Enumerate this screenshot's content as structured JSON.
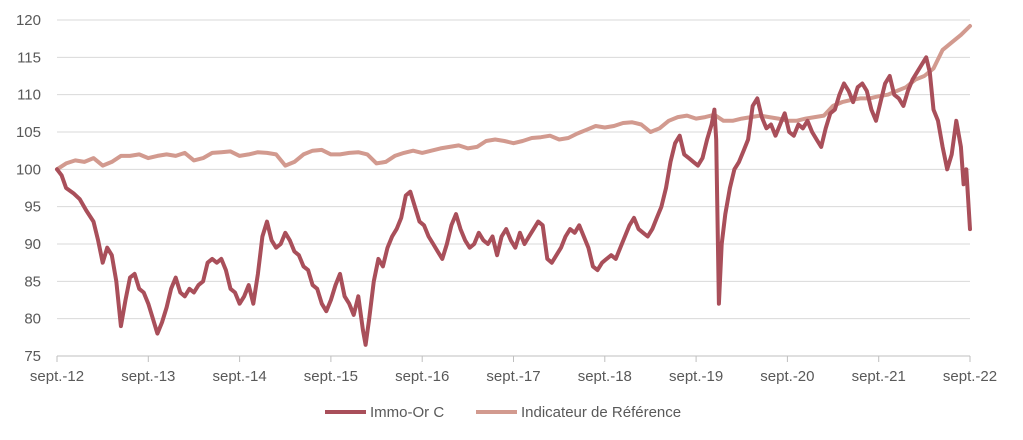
{
  "chart_data": {
    "type": "line",
    "title": "",
    "xlabel": "",
    "ylabel": "",
    "ylim": [
      75,
      120
    ],
    "yticks": [
      75,
      80,
      85,
      90,
      95,
      100,
      105,
      110,
      115,
      120
    ],
    "xticks": [
      "sept.-12",
      "sept.-13",
      "sept.-14",
      "sept.-15",
      "sept.-16",
      "sept.-17",
      "sept.-18",
      "sept.-19",
      "sept.-20",
      "sept.-21",
      "sept.-22"
    ],
    "grid": "horizontal",
    "legend_position": "bottom",
    "series": [
      {
        "name": "Immo-Or C",
        "color": "#a94f5a",
        "points": [
          [
            0.0,
            100.0
          ],
          [
            0.05,
            99.2
          ],
          [
            0.1,
            97.5
          ],
          [
            0.18,
            96.8
          ],
          [
            0.25,
            96.0
          ],
          [
            0.32,
            94.5
          ],
          [
            0.4,
            93.0
          ],
          [
            0.45,
            90.5
          ],
          [
            0.5,
            87.5
          ],
          [
            0.55,
            89.5
          ],
          [
            0.6,
            88.5
          ],
          [
            0.65,
            85.0
          ],
          [
            0.7,
            79.0
          ],
          [
            0.75,
            82.5
          ],
          [
            0.8,
            85.5
          ],
          [
            0.85,
            86.0
          ],
          [
            0.9,
            84.0
          ],
          [
            0.95,
            83.5
          ],
          [
            1.0,
            82.0
          ],
          [
            1.05,
            80.0
          ],
          [
            1.1,
            78.0
          ],
          [
            1.15,
            79.5
          ],
          [
            1.2,
            81.5
          ],
          [
            1.25,
            84.0
          ],
          [
            1.3,
            85.5
          ],
          [
            1.35,
            83.5
          ],
          [
            1.4,
            83.0
          ],
          [
            1.45,
            84.0
          ],
          [
            1.5,
            83.5
          ],
          [
            1.55,
            84.5
          ],
          [
            1.6,
            85.0
          ],
          [
            1.65,
            87.5
          ],
          [
            1.7,
            88.0
          ],
          [
            1.75,
            87.5
          ],
          [
            1.8,
            88.0
          ],
          [
            1.85,
            86.5
          ],
          [
            1.9,
            84.0
          ],
          [
            1.95,
            83.5
          ],
          [
            2.0,
            82.0
          ],
          [
            2.05,
            83.0
          ],
          [
            2.1,
            84.5
          ],
          [
            2.15,
            82.0
          ],
          [
            2.2,
            86.0
          ],
          [
            2.25,
            91.0
          ],
          [
            2.3,
            93.0
          ],
          [
            2.35,
            90.5
          ],
          [
            2.4,
            89.5
          ],
          [
            2.45,
            90.0
          ],
          [
            2.5,
            91.5
          ],
          [
            2.55,
            90.5
          ],
          [
            2.6,
            89.0
          ],
          [
            2.65,
            88.5
          ],
          [
            2.7,
            87.0
          ],
          [
            2.75,
            86.5
          ],
          [
            2.8,
            84.5
          ],
          [
            2.85,
            84.0
          ],
          [
            2.9,
            82.0
          ],
          [
            2.95,
            81.0
          ],
          [
            3.0,
            82.5
          ],
          [
            3.05,
            84.5
          ],
          [
            3.1,
            86.0
          ],
          [
            3.15,
            83.0
          ],
          [
            3.2,
            82.0
          ],
          [
            3.25,
            80.5
          ],
          [
            3.3,
            83.0
          ],
          [
            3.35,
            78.5
          ],
          [
            3.38,
            76.5
          ],
          [
            3.42,
            80.0
          ],
          [
            3.47,
            85.0
          ],
          [
            3.52,
            88.0
          ],
          [
            3.57,
            87.0
          ],
          [
            3.62,
            89.5
          ],
          [
            3.67,
            91.0
          ],
          [
            3.72,
            92.0
          ],
          [
            3.77,
            93.5
          ],
          [
            3.82,
            96.5
          ],
          [
            3.87,
            97.0
          ],
          [
            3.92,
            95.0
          ],
          [
            3.97,
            93.0
          ],
          [
            4.02,
            92.5
          ],
          [
            4.07,
            91.0
          ],
          [
            4.12,
            90.0
          ],
          [
            4.17,
            89.0
          ],
          [
            4.22,
            88.0
          ],
          [
            4.27,
            90.0
          ],
          [
            4.32,
            92.5
          ],
          [
            4.37,
            94.0
          ],
          [
            4.42,
            92.0
          ],
          [
            4.47,
            90.5
          ],
          [
            4.52,
            89.5
          ],
          [
            4.57,
            90.0
          ],
          [
            4.62,
            91.5
          ],
          [
            4.67,
            90.5
          ],
          [
            4.72,
            90.0
          ],
          [
            4.77,
            91.0
          ],
          [
            4.82,
            88.5
          ],
          [
            4.87,
            91.0
          ],
          [
            4.92,
            92.0
          ],
          [
            4.97,
            90.5
          ],
          [
            5.02,
            89.5
          ],
          [
            5.07,
            91.5
          ],
          [
            5.12,
            90.0
          ],
          [
            5.17,
            91.0
          ],
          [
            5.22,
            92.0
          ],
          [
            5.27,
            93.0
          ],
          [
            5.32,
            92.5
          ],
          [
            5.37,
            88.0
          ],
          [
            5.42,
            87.5
          ],
          [
            5.47,
            88.5
          ],
          [
            5.52,
            89.5
          ],
          [
            5.57,
            91.0
          ],
          [
            5.62,
            92.0
          ],
          [
            5.67,
            91.5
          ],
          [
            5.72,
            92.5
          ],
          [
            5.77,
            91.0
          ],
          [
            5.82,
            89.5
          ],
          [
            5.87,
            87.0
          ],
          [
            5.92,
            86.5
          ],
          [
            5.97,
            87.5
          ],
          [
            6.02,
            88.0
          ],
          [
            6.07,
            88.5
          ],
          [
            6.12,
            88.0
          ],
          [
            6.17,
            89.5
          ],
          [
            6.22,
            91.0
          ],
          [
            6.27,
            92.5
          ],
          [
            6.32,
            93.5
          ],
          [
            6.37,
            92.0
          ],
          [
            6.42,
            91.5
          ],
          [
            6.47,
            91.0
          ],
          [
            6.52,
            92.0
          ],
          [
            6.57,
            93.5
          ],
          [
            6.62,
            95.0
          ],
          [
            6.67,
            97.5
          ],
          [
            6.72,
            101.0
          ],
          [
            6.77,
            103.5
          ],
          [
            6.82,
            104.5
          ],
          [
            6.87,
            102.0
          ],
          [
            6.92,
            101.5
          ],
          [
            6.97,
            101.0
          ],
          [
            7.02,
            100.5
          ],
          [
            7.07,
            101.5
          ],
          [
            7.12,
            104.0
          ],
          [
            7.17,
            106.0
          ],
          [
            7.2,
            108.0
          ],
          [
            7.22,
            104.0
          ],
          [
            7.25,
            82.0
          ],
          [
            7.28,
            90.0
          ],
          [
            7.32,
            94.0
          ],
          [
            7.37,
            97.5
          ],
          [
            7.42,
            100.0
          ],
          [
            7.47,
            101.0
          ],
          [
            7.52,
            102.5
          ],
          [
            7.57,
            104.0
          ],
          [
            7.62,
            108.5
          ],
          [
            7.67,
            109.5
          ],
          [
            7.72,
            107.0
          ],
          [
            7.77,
            105.5
          ],
          [
            7.82,
            106.0
          ],
          [
            7.87,
            104.5
          ],
          [
            7.92,
            106.0
          ],
          [
            7.97,
            107.5
          ],
          [
            8.02,
            105.0
          ],
          [
            8.07,
            104.5
          ],
          [
            8.12,
            106.0
          ],
          [
            8.17,
            105.5
          ],
          [
            8.22,
            106.5
          ],
          [
            8.27,
            105.0
          ],
          [
            8.32,
            104.0
          ],
          [
            8.37,
            103.0
          ],
          [
            8.42,
            105.5
          ],
          [
            8.47,
            107.5
          ],
          [
            8.52,
            108.0
          ],
          [
            8.57,
            110.0
          ],
          [
            8.62,
            111.5
          ],
          [
            8.67,
            110.5
          ],
          [
            8.72,
            109.0
          ],
          [
            8.77,
            111.0
          ],
          [
            8.82,
            111.5
          ],
          [
            8.87,
            110.5
          ],
          [
            8.92,
            108.0
          ],
          [
            8.97,
            106.5
          ],
          [
            9.02,
            109.0
          ],
          [
            9.07,
            111.5
          ],
          [
            9.12,
            112.5
          ],
          [
            9.17,
            110.0
          ],
          [
            9.22,
            109.5
          ],
          [
            9.27,
            108.5
          ],
          [
            9.32,
            110.5
          ],
          [
            9.37,
            112.0
          ],
          [
            9.42,
            113.0
          ],
          [
            9.47,
            114.0
          ],
          [
            9.52,
            115.0
          ],
          [
            9.56,
            113.0
          ],
          [
            9.6,
            108.0
          ],
          [
            9.65,
            106.5
          ],
          [
            9.7,
            103.0
          ],
          [
            9.75,
            100.0
          ],
          [
            9.8,
            102.0
          ],
          [
            9.85,
            106.5
          ],
          [
            9.9,
            103.0
          ],
          [
            9.93,
            98.0
          ],
          [
            9.96,
            100.0
          ],
          [
            10.0,
            92.0
          ]
        ]
      },
      {
        "name": "Indicateur de Référence",
        "color": "#d29a8f",
        "points": [
          [
            0.0,
            100.0
          ],
          [
            0.1,
            100.8
          ],
          [
            0.2,
            101.2
          ],
          [
            0.3,
            101.0
          ],
          [
            0.4,
            101.5
          ],
          [
            0.5,
            100.5
          ],
          [
            0.6,
            101.0
          ],
          [
            0.7,
            101.8
          ],
          [
            0.8,
            101.8
          ],
          [
            0.9,
            102.0
          ],
          [
            1.0,
            101.5
          ],
          [
            1.1,
            101.8
          ],
          [
            1.2,
            102.0
          ],
          [
            1.3,
            101.8
          ],
          [
            1.4,
            102.2
          ],
          [
            1.5,
            101.2
          ],
          [
            1.6,
            101.5
          ],
          [
            1.7,
            102.2
          ],
          [
            1.8,
            102.3
          ],
          [
            1.9,
            102.4
          ],
          [
            2.0,
            101.8
          ],
          [
            2.1,
            102.0
          ],
          [
            2.2,
            102.3
          ],
          [
            2.3,
            102.2
          ],
          [
            2.4,
            102.0
          ],
          [
            2.5,
            100.5
          ],
          [
            2.6,
            101.0
          ],
          [
            2.7,
            102.0
          ],
          [
            2.8,
            102.5
          ],
          [
            2.9,
            102.6
          ],
          [
            3.0,
            102.0
          ],
          [
            3.1,
            102.0
          ],
          [
            3.2,
            102.2
          ],
          [
            3.3,
            102.3
          ],
          [
            3.4,
            102.0
          ],
          [
            3.5,
            100.8
          ],
          [
            3.6,
            101.0
          ],
          [
            3.7,
            101.8
          ],
          [
            3.8,
            102.2
          ],
          [
            3.9,
            102.5
          ],
          [
            4.0,
            102.2
          ],
          [
            4.1,
            102.5
          ],
          [
            4.2,
            102.8
          ],
          [
            4.3,
            103.0
          ],
          [
            4.4,
            103.2
          ],
          [
            4.5,
            102.8
          ],
          [
            4.6,
            103.0
          ],
          [
            4.7,
            103.8
          ],
          [
            4.8,
            104.0
          ],
          [
            4.9,
            103.8
          ],
          [
            5.0,
            103.5
          ],
          [
            5.1,
            103.8
          ],
          [
            5.2,
            104.2
          ],
          [
            5.3,
            104.3
          ],
          [
            5.4,
            104.5
          ],
          [
            5.5,
            104.0
          ],
          [
            5.6,
            104.2
          ],
          [
            5.7,
            104.8
          ],
          [
            5.8,
            105.3
          ],
          [
            5.9,
            105.8
          ],
          [
            6.0,
            105.6
          ],
          [
            6.1,
            105.8
          ],
          [
            6.2,
            106.2
          ],
          [
            6.3,
            106.3
          ],
          [
            6.4,
            106.0
          ],
          [
            6.5,
            105.0
          ],
          [
            6.6,
            105.5
          ],
          [
            6.7,
            106.5
          ],
          [
            6.8,
            107.0
          ],
          [
            6.9,
            107.2
          ],
          [
            7.0,
            106.8
          ],
          [
            7.1,
            107.0
          ],
          [
            7.2,
            107.3
          ],
          [
            7.3,
            106.5
          ],
          [
            7.4,
            106.5
          ],
          [
            7.5,
            106.8
          ],
          [
            7.6,
            107.0
          ],
          [
            7.7,
            107.2
          ],
          [
            7.8,
            107.0
          ],
          [
            7.9,
            106.8
          ],
          [
            8.0,
            106.5
          ],
          [
            8.1,
            106.5
          ],
          [
            8.2,
            106.8
          ],
          [
            8.3,
            107.0
          ],
          [
            8.4,
            107.2
          ],
          [
            8.5,
            108.5
          ],
          [
            8.6,
            109.0
          ],
          [
            8.7,
            109.3
          ],
          [
            8.8,
            109.5
          ],
          [
            8.9,
            109.5
          ],
          [
            9.0,
            109.8
          ],
          [
            9.1,
            110.0
          ],
          [
            9.2,
            110.5
          ],
          [
            9.3,
            111.0
          ],
          [
            9.4,
            112.0
          ],
          [
            9.5,
            112.5
          ],
          [
            9.6,
            113.5
          ],
          [
            9.7,
            116.0
          ],
          [
            9.8,
            117.0
          ],
          [
            9.9,
            118.0
          ],
          [
            10.0,
            119.2
          ]
        ]
      }
    ]
  }
}
